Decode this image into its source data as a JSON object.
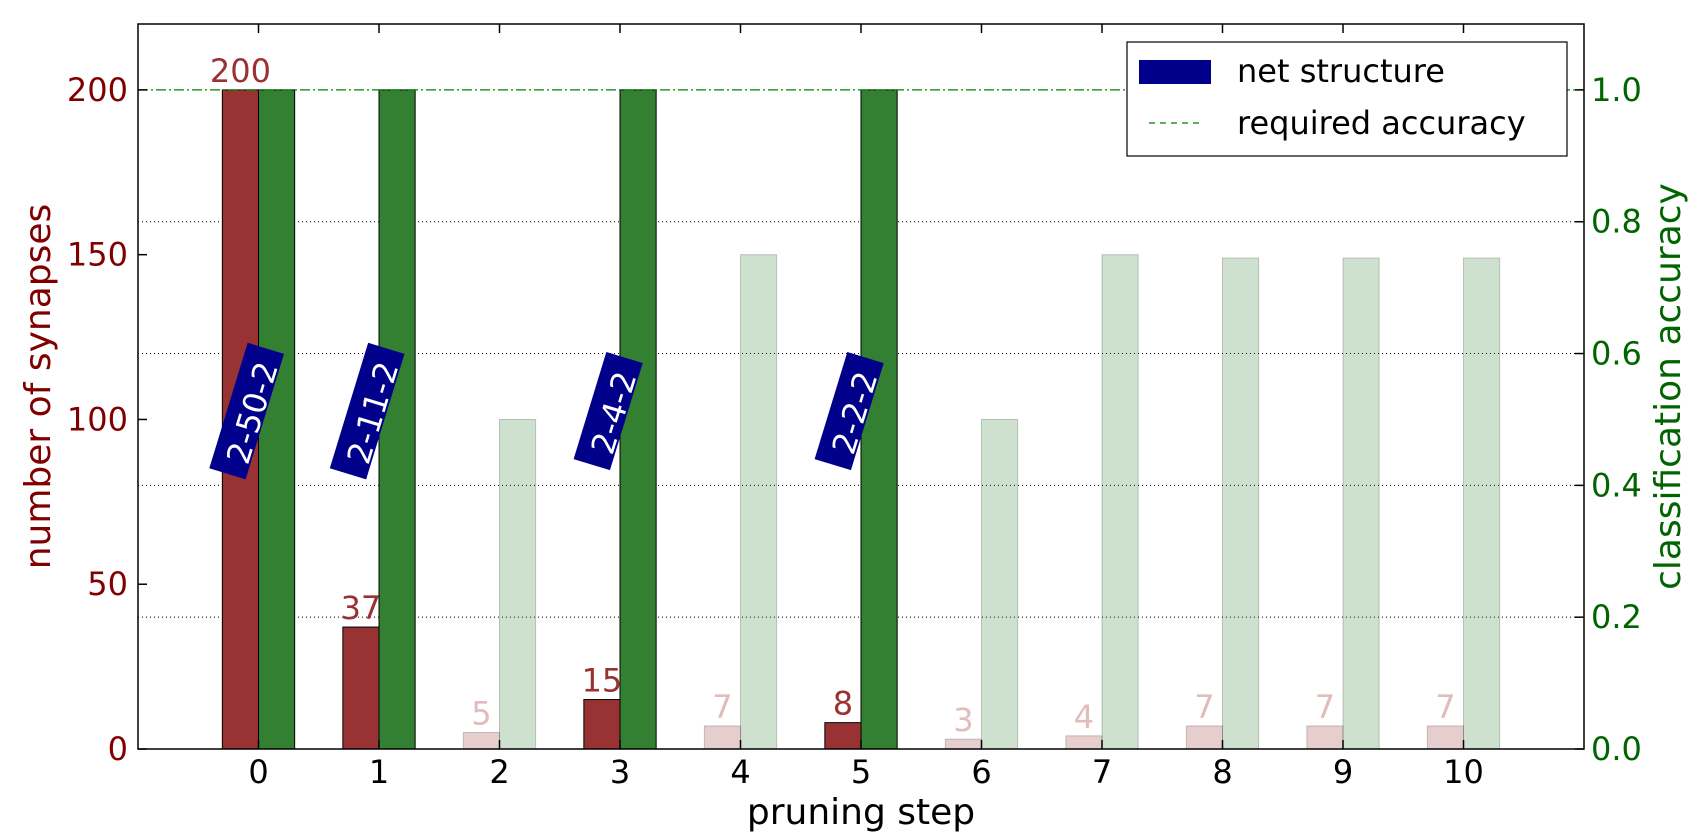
{
  "chart_data": {
    "type": "bar",
    "xlabel": "pruning step",
    "ylabel_left": "number of synapses",
    "ylabel_right": "classification accuracy",
    "categories": [
      "0",
      "1",
      "2",
      "3",
      "4",
      "5",
      "6",
      "7",
      "8",
      "9",
      "10"
    ],
    "ylim_left": [
      0,
      220
    ],
    "ylim_right": [
      0,
      1.1
    ],
    "xlim": [
      -1,
      11
    ],
    "yticks_left": [
      0,
      50,
      100,
      150,
      200
    ],
    "yticks_right": [
      "0.0",
      "0.2",
      "0.4",
      "0.6",
      "0.8",
      "1.0"
    ],
    "grid": "dotted horizontal at right-axis ticks",
    "series": [
      {
        "axis": "left",
        "color": "#993333",
        "values": [
          200,
          37,
          5,
          15,
          7,
          8,
          3,
          4,
          7,
          7,
          7
        ],
        "value_labels": [
          "200",
          "37",
          "5",
          "15",
          "7",
          "8",
          "3",
          "4",
          "7",
          "7",
          "7"
        ]
      },
      {
        "axis": "right",
        "color": "#338033",
        "values": [
          1.0,
          1.0,
          0.5,
          1.0,
          0.75,
          1.0,
          0.5,
          0.75,
          0.745,
          0.745,
          0.745
        ]
      }
    ],
    "accepted": [
      true,
      true,
      false,
      true,
      false,
      true,
      false,
      false,
      false,
      false,
      false
    ],
    "net_structures": [
      {
        "step": 0,
        "label": "2-50-2"
      },
      {
        "step": 1,
        "label": "2-11-2"
      },
      {
        "step": 3,
        "label": "2-4-2"
      },
      {
        "step": 5,
        "label": "2-2-2"
      }
    ],
    "required_accuracy": 1.0,
    "legend": {
      "position": "top-right",
      "entries": [
        {
          "label": "net structure",
          "color": "#00008B",
          "style": "patch"
        },
        {
          "label": "required accuracy",
          "color": "#008000",
          "style": "dashed"
        }
      ]
    },
    "colors": {
      "left_axis": "#800000",
      "right_axis": "#006400",
      "value_label": "#993333",
      "value_label_faded": "#e0bcbc",
      "net_box": "#00008B",
      "required_line": "#008000"
    }
  }
}
